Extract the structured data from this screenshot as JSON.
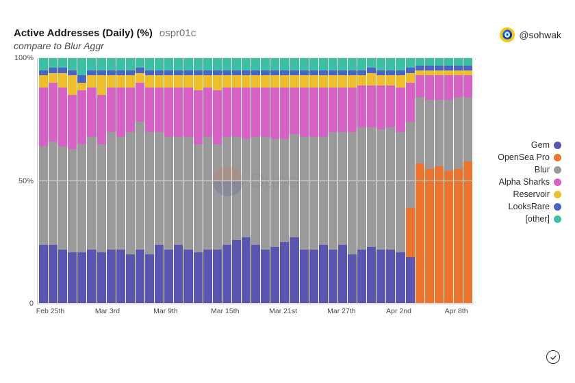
{
  "header": {
    "title": "Active Addresses (Daily) (%)",
    "slug": "ospr01c",
    "subtitle": "compare to Blur Aggr",
    "author_handle": "@sohwak",
    "author_icon_glyph": "🧿"
  },
  "watermark": {
    "text": "Dune"
  },
  "chart": {
    "type": "stacked-bar-100pct",
    "ylim": [
      0,
      100
    ],
    "yticks": [
      {
        "v": 0,
        "label": "0"
      },
      {
        "v": 50,
        "label": "50%"
      },
      {
        "v": 100,
        "label": "100%"
      }
    ],
    "grid_color": "#e8e8e8",
    "axis_color": "#c8c8c8",
    "background_color": "#ffffff",
    "label_fontsize": 11,
    "series": [
      {
        "key": "gem",
        "label": "Gem",
        "color": "#5a55b0"
      },
      {
        "key": "opensea_pro",
        "label": "OpenSea Pro",
        "color": "#ed742e"
      },
      {
        "key": "blur",
        "label": "Blur",
        "color": "#9a9a9a"
      },
      {
        "key": "alpha_sharks",
        "label": "Alpha Sharks",
        "color": "#d861c7"
      },
      {
        "key": "reservoir",
        "label": "Reservoir",
        "color": "#eebf2b"
      },
      {
        "key": "looksrare",
        "label": "LooksRare",
        "color": "#4a63c4"
      },
      {
        "key": "other",
        "label": "[other]",
        "color": "#3cbfa4"
      }
    ],
    "x_categories": [
      "Feb 25",
      "Feb 26",
      "Feb 27",
      "Feb 28",
      "Mar 1",
      "Mar 2",
      "Mar 3",
      "Mar 4",
      "Mar 5",
      "Mar 6",
      "Mar 7",
      "Mar 8",
      "Mar 9",
      "Mar 10",
      "Mar 11",
      "Mar 12",
      "Mar 13",
      "Mar 14",
      "Mar 15",
      "Mar 16",
      "Mar 17",
      "Mar 18",
      "Mar 19",
      "Mar 20",
      "Mar 21",
      "Mar 22",
      "Mar 23",
      "Mar 24",
      "Mar 25",
      "Mar 26",
      "Mar 27",
      "Mar 28",
      "Mar 29",
      "Mar 30",
      "Mar 31",
      "Apr 1",
      "Apr 2",
      "Apr 3",
      "Apr 4",
      "Apr 5",
      "Apr 6",
      "Apr 7",
      "Apr 8",
      "Apr 9",
      "Apr 10"
    ],
    "x_ticks": [
      {
        "i": 0,
        "label": "Feb 25th"
      },
      {
        "i": 6,
        "label": "Mar 3rd"
      },
      {
        "i": 12,
        "label": "Mar 9th"
      },
      {
        "i": 18,
        "label": "Mar 15th"
      },
      {
        "i": 24,
        "label": "Mar 21st"
      },
      {
        "i": 30,
        "label": "Mar 27th"
      },
      {
        "i": 36,
        "label": "Apr 2nd"
      },
      {
        "i": 42,
        "label": "Apr 8th"
      }
    ],
    "data": [
      {
        "gem": 24,
        "opensea_pro": 0,
        "blur": 40,
        "alpha_sharks": 24,
        "reservoir": 5,
        "looksrare": 2,
        "other": 5
      },
      {
        "gem": 24,
        "opensea_pro": 0,
        "blur": 42,
        "alpha_sharks": 24,
        "reservoir": 4,
        "looksrare": 2,
        "other": 4
      },
      {
        "gem": 22,
        "opensea_pro": 0,
        "blur": 42,
        "alpha_sharks": 24,
        "reservoir": 6,
        "looksrare": 2,
        "other": 4
      },
      {
        "gem": 21,
        "opensea_pro": 0,
        "blur": 42,
        "alpha_sharks": 22,
        "reservoir": 8,
        "looksrare": 2,
        "other": 5
      },
      {
        "gem": 21,
        "opensea_pro": 0,
        "blur": 44,
        "alpha_sharks": 22,
        "reservoir": 3,
        "looksrare": 3,
        "other": 7
      },
      {
        "gem": 22,
        "opensea_pro": 0,
        "blur": 46,
        "alpha_sharks": 20,
        "reservoir": 5,
        "looksrare": 2,
        "other": 5
      },
      {
        "gem": 21,
        "opensea_pro": 0,
        "blur": 44,
        "alpha_sharks": 20,
        "reservoir": 8,
        "looksrare": 2,
        "other": 5
      },
      {
        "gem": 22,
        "opensea_pro": 0,
        "blur": 48,
        "alpha_sharks": 18,
        "reservoir": 5,
        "looksrare": 2,
        "other": 5
      },
      {
        "gem": 22,
        "opensea_pro": 0,
        "blur": 46,
        "alpha_sharks": 20,
        "reservoir": 5,
        "looksrare": 2,
        "other": 5
      },
      {
        "gem": 20,
        "opensea_pro": 0,
        "blur": 50,
        "alpha_sharks": 18,
        "reservoir": 5,
        "looksrare": 2,
        "other": 5
      },
      {
        "gem": 22,
        "opensea_pro": 0,
        "blur": 52,
        "alpha_sharks": 16,
        "reservoir": 4,
        "looksrare": 2,
        "other": 4
      },
      {
        "gem": 20,
        "opensea_pro": 0,
        "blur": 50,
        "alpha_sharks": 18,
        "reservoir": 5,
        "looksrare": 2,
        "other": 5
      },
      {
        "gem": 24,
        "opensea_pro": 0,
        "blur": 46,
        "alpha_sharks": 18,
        "reservoir": 5,
        "looksrare": 2,
        "other": 5
      },
      {
        "gem": 22,
        "opensea_pro": 0,
        "blur": 46,
        "alpha_sharks": 20,
        "reservoir": 5,
        "looksrare": 2,
        "other": 5
      },
      {
        "gem": 24,
        "opensea_pro": 0,
        "blur": 44,
        "alpha_sharks": 20,
        "reservoir": 5,
        "looksrare": 2,
        "other": 5
      },
      {
        "gem": 22,
        "opensea_pro": 0,
        "blur": 46,
        "alpha_sharks": 20,
        "reservoir": 5,
        "looksrare": 2,
        "other": 5
      },
      {
        "gem": 21,
        "opensea_pro": 0,
        "blur": 44,
        "alpha_sharks": 22,
        "reservoir": 6,
        "looksrare": 2,
        "other": 5
      },
      {
        "gem": 22,
        "opensea_pro": 0,
        "blur": 46,
        "alpha_sharks": 20,
        "reservoir": 5,
        "looksrare": 2,
        "other": 5
      },
      {
        "gem": 22,
        "opensea_pro": 0,
        "blur": 43,
        "alpha_sharks": 22,
        "reservoir": 6,
        "looksrare": 2,
        "other": 5
      },
      {
        "gem": 24,
        "opensea_pro": 0,
        "blur": 44,
        "alpha_sharks": 20,
        "reservoir": 5,
        "looksrare": 2,
        "other": 5
      },
      {
        "gem": 26,
        "opensea_pro": 0,
        "blur": 42,
        "alpha_sharks": 20,
        "reservoir": 5,
        "looksrare": 2,
        "other": 5
      },
      {
        "gem": 27,
        "opensea_pro": 0,
        "blur": 40,
        "alpha_sharks": 21,
        "reservoir": 5,
        "looksrare": 2,
        "other": 5
      },
      {
        "gem": 24,
        "opensea_pro": 0,
        "blur": 44,
        "alpha_sharks": 20,
        "reservoir": 5,
        "looksrare": 2,
        "other": 5
      },
      {
        "gem": 22,
        "opensea_pro": 0,
        "blur": 46,
        "alpha_sharks": 20,
        "reservoir": 5,
        "looksrare": 2,
        "other": 5
      },
      {
        "gem": 23,
        "opensea_pro": 0,
        "blur": 44,
        "alpha_sharks": 21,
        "reservoir": 5,
        "looksrare": 2,
        "other": 5
      },
      {
        "gem": 25,
        "opensea_pro": 0,
        "blur": 42,
        "alpha_sharks": 21,
        "reservoir": 5,
        "looksrare": 2,
        "other": 5
      },
      {
        "gem": 27,
        "opensea_pro": 0,
        "blur": 42,
        "alpha_sharks": 19,
        "reservoir": 5,
        "looksrare": 2,
        "other": 5
      },
      {
        "gem": 22,
        "opensea_pro": 0,
        "blur": 46,
        "alpha_sharks": 20,
        "reservoir": 5,
        "looksrare": 2,
        "other": 5
      },
      {
        "gem": 22,
        "opensea_pro": 0,
        "blur": 46,
        "alpha_sharks": 20,
        "reservoir": 5,
        "looksrare": 2,
        "other": 5
      },
      {
        "gem": 24,
        "opensea_pro": 0,
        "blur": 44,
        "alpha_sharks": 20,
        "reservoir": 5,
        "looksrare": 2,
        "other": 5
      },
      {
        "gem": 22,
        "opensea_pro": 0,
        "blur": 48,
        "alpha_sharks": 18,
        "reservoir": 5,
        "looksrare": 2,
        "other": 5
      },
      {
        "gem": 24,
        "opensea_pro": 0,
        "blur": 46,
        "alpha_sharks": 18,
        "reservoir": 5,
        "looksrare": 2,
        "other": 5
      },
      {
        "gem": 20,
        "opensea_pro": 0,
        "blur": 50,
        "alpha_sharks": 18,
        "reservoir": 5,
        "looksrare": 2,
        "other": 5
      },
      {
        "gem": 22,
        "opensea_pro": 0,
        "blur": 50,
        "alpha_sharks": 17,
        "reservoir": 4,
        "looksrare": 2,
        "other": 5
      },
      {
        "gem": 23,
        "opensea_pro": 0,
        "blur": 49,
        "alpha_sharks": 17,
        "reservoir": 5,
        "looksrare": 2,
        "other": 4
      },
      {
        "gem": 22,
        "opensea_pro": 0,
        "blur": 49,
        "alpha_sharks": 18,
        "reservoir": 4,
        "looksrare": 2,
        "other": 5
      },
      {
        "gem": 22,
        "opensea_pro": 0,
        "blur": 50,
        "alpha_sharks": 17,
        "reservoir": 4,
        "looksrare": 2,
        "other": 5
      },
      {
        "gem": 21,
        "opensea_pro": 0,
        "blur": 49,
        "alpha_sharks": 18,
        "reservoir": 5,
        "looksrare": 2,
        "other": 5
      },
      {
        "gem": 19,
        "opensea_pro": 20,
        "blur": 35,
        "alpha_sharks": 16,
        "reservoir": 4,
        "looksrare": 2,
        "other": 4
      },
      {
        "gem": 0,
        "opensea_pro": 57,
        "blur": 27,
        "alpha_sharks": 9,
        "reservoir": 2,
        "looksrare": 2,
        "other": 3
      },
      {
        "gem": 0,
        "opensea_pro": 55,
        "blur": 28,
        "alpha_sharks": 10,
        "reservoir": 2,
        "looksrare": 2,
        "other": 3
      },
      {
        "gem": 0,
        "opensea_pro": 56,
        "blur": 27,
        "alpha_sharks": 10,
        "reservoir": 2,
        "looksrare": 2,
        "other": 3
      },
      {
        "gem": 0,
        "opensea_pro": 54,
        "blur": 29,
        "alpha_sharks": 10,
        "reservoir": 2,
        "looksrare": 2,
        "other": 3
      },
      {
        "gem": 0,
        "opensea_pro": 55,
        "blur": 29,
        "alpha_sharks": 9,
        "reservoir": 2,
        "looksrare": 2,
        "other": 3
      },
      {
        "gem": 0,
        "opensea_pro": 58,
        "blur": 26,
        "alpha_sharks": 9,
        "reservoir": 2,
        "looksrare": 2,
        "other": 3
      }
    ]
  }
}
